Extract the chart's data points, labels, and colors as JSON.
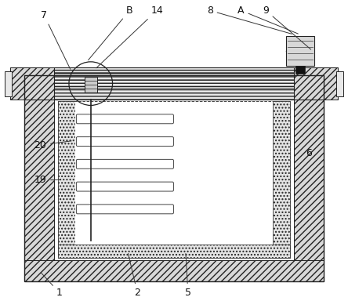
{
  "bg_color": "#ffffff",
  "lc": "#222222",
  "hatch_fc": "#d8d8d8",
  "dot_fc": "#e0e0e0"
}
